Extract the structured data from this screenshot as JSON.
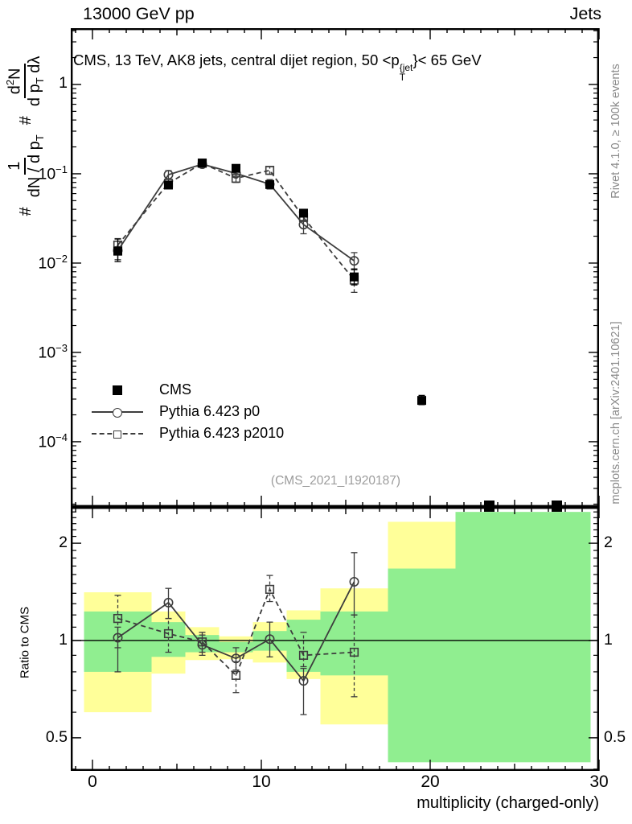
{
  "header": {
    "left": "13000 GeV pp",
    "right": "Jets"
  },
  "plot_title": {
    "part1": "CMS, 13 TeV, AK8 jets, central dijet region, 50 <p",
    "sup": "{jet",
    "sub": "T",
    "part2": "}< 65 GeV"
  },
  "formula": {
    "hash1": "#",
    "num1": "1",
    "den1": "dN / d p",
    "den1_sub": "T",
    "hash2": "#",
    "num2_d": "d",
    "num2_sup": "2",
    "num2_N": "N",
    "den2": "d p",
    "den2_sub": "T",
    "den2_tail": " dλ"
  },
  "legend": {
    "items": [
      {
        "label": "CMS",
        "marker": "filled-square"
      },
      {
        "label": "Pythia 6.423 p0",
        "marker": "circle-on-line"
      },
      {
        "label": "Pythia 6.423 p2010",
        "marker": "square-on-dashed-line"
      }
    ]
  },
  "watermark": "(CMS_2021_I1920187)",
  "side_notes": {
    "rivet": "Rivet 4.1.0, ≥ 100k events",
    "mcplots": "mcplots.cern.ch [arXiv:2401.10621]"
  },
  "ratio_ylabel": "Ratio to CMS",
  "colors": {
    "band_yellow": "#ffff99",
    "band_green": "#90ee90",
    "mc_line": "#3d3d3d",
    "data": "#000000",
    "gray_text": "#8a8a8a"
  },
  "chart_data": {
    "type": "scatter",
    "xlabel": "multiplicity (charged-only)",
    "xlim": [
      -1.286,
      30
    ],
    "x": {
      "ticks_major": [
        {
          "v": 0,
          "label": "0"
        },
        {
          "v": 10,
          "label": "10"
        },
        {
          "v": 20,
          "label": "20"
        },
        {
          "v": 30,
          "label": "30"
        }
      ],
      "ticks_medium": [
        5,
        15,
        25
      ]
    },
    "main": {
      "yscale": "log",
      "ylim": [
        1.86e-05,
        4.27
      ],
      "yticks": [
        {
          "v": 1,
          "base": "1",
          "exp": ""
        },
        {
          "v": 0.1,
          "base": "10",
          "exp": "−1"
        },
        {
          "v": 0.01,
          "base": "10",
          "exp": "−2"
        },
        {
          "v": 0.001,
          "base": "10",
          "exp": "−3"
        },
        {
          "v": 0.0001,
          "base": "10",
          "exp": "−4"
        }
      ],
      "series": [
        {
          "name": "Pythia 6.423 p2010",
          "marker": "open-square",
          "line": "dashed",
          "color": "#3d3d3d",
          "x": [
            1.5,
            4.5,
            6.5,
            8.5,
            10.5,
            12.5,
            15.5
          ],
          "y": [
            0.0159,
            0.0783,
            0.131,
            0.089,
            0.1093,
            0.0324,
            0.00646
          ],
          "err_lo": [
            0.0129,
            0.0686,
            0.12,
            0.08,
            0.0985,
            0.0301,
            0.0047
          ],
          "err_hi": [
            0.0188,
            0.0872,
            0.136,
            0.099,
            0.12,
            0.0383,
            0.0084
          ]
        },
        {
          "name": "Pythia 6.423 p0",
          "marker": "open-circle",
          "line": "solid",
          "color": "#3d3d3d",
          "x": [
            1.5,
            4.5,
            6.5,
            8.5,
            10.5,
            12.5,
            15.5
          ],
          "y": [
            0.0138,
            0.0977,
            0.128,
            0.101,
            0.0764,
            0.027,
            0.0106
          ],
          "err_lo": [
            0.0109,
            0.0875,
            0.119,
            0.0937,
            0.0675,
            0.0213,
            0.0084
          ],
          "err_hi": [
            0.0152,
            0.1085,
            0.137,
            0.109,
            0.0861,
            0.0297,
            0.0131
          ]
        },
        {
          "name": "CMS",
          "marker": "filled-square",
          "line": "none",
          "color": "#000000",
          "x": [
            1.5,
            4.5,
            6.5,
            8.5,
            10.5,
            12.5,
            15.5,
            19.5
          ],
          "y": [
            0.0136,
            0.0748,
            0.132,
            0.115,
            0.0758,
            0.0362,
            0.007,
            0.00029
          ],
          "err_lo": [
            0.0104,
            0.07,
            0.124,
            0.107,
            0.0705,
            0.033,
            0.0057,
            0.00026
          ],
          "err_hi": [
            0.0186,
            0.08,
            0.14,
            0.123,
            0.0815,
            0.0398,
            0.0086,
            0.00033
          ],
          "clipped_below_axis_x": [
            23.5,
            27.5
          ]
        }
      ]
    },
    "ratio": {
      "yscale": "log",
      "ylim": [
        0.395,
        2.59
      ],
      "yticks": [
        {
          "v": 2,
          "label": "2"
        },
        {
          "v": 1,
          "label": "1"
        },
        {
          "v": 0.5,
          "label": "0.5"
        }
      ],
      "reference_line": 1,
      "bands": [
        {
          "x": [
            -0.5,
            3.5
          ],
          "yellow": [
            0.6,
            1.41
          ],
          "green": [
            0.8,
            1.23
          ]
        },
        {
          "x": [
            3.5,
            5.5
          ],
          "yellow": [
            0.79,
            1.23
          ],
          "green": [
            0.89,
            1.14
          ]
        },
        {
          "x": [
            5.5,
            7.5
          ],
          "yellow": [
            0.87,
            1.1
          ],
          "green": [
            0.92,
            1.04
          ]
        },
        {
          "x": [
            7.5,
            9.5
          ],
          "yellow": [
            0.875,
            1.03
          ],
          "green": [
            0.92,
            0.99
          ]
        },
        {
          "x": [
            9.5,
            11.5
          ],
          "yellow": [
            0.855,
            1.14
          ],
          "green": [
            0.93,
            1.07
          ]
        },
        {
          "x": [
            11.5,
            13.5
          ],
          "yellow": [
            0.76,
            1.24
          ],
          "green": [
            0.8,
            1.16
          ]
        },
        {
          "x": [
            13.5,
            17.5
          ],
          "yellow": [
            0.55,
            1.45
          ],
          "green": [
            0.78,
            1.23
          ]
        },
        {
          "x": [
            17.5,
            21.5
          ],
          "yellow": [
            1.67,
            2.33
          ],
          "green": [
            0.42,
            1.67
          ]
        },
        {
          "x": [
            21.5,
            29.5
          ],
          "yellow": null,
          "green": [
            0.42,
            2.5
          ]
        }
      ],
      "series": [
        {
          "name": "Pythia 6.423 p2010",
          "marker": "open-square",
          "line": "dashed",
          "color": "#3d3d3d",
          "x": [
            1.5,
            4.5,
            6.5,
            8.5,
            10.5,
            12.5,
            15.5
          ],
          "y": [
            1.17,
            1.05,
            0.99,
            0.78,
            1.44,
            0.9,
            0.92
          ],
          "err_lo": [
            0.95,
            0.92,
            0.92,
            0.69,
            1.32,
            0.83,
            0.67
          ],
          "err_hi": [
            1.38,
            1.17,
            1.06,
            0.86,
            1.59,
            1.06,
            1.2
          ]
        },
        {
          "name": "Pythia 6.423 p0",
          "marker": "open-circle",
          "line": "solid",
          "color": "#3d3d3d",
          "x": [
            1.5,
            4.5,
            6.5,
            8.5,
            10.5,
            12.5,
            15.5
          ],
          "y": [
            1.02,
            1.31,
            0.97,
            0.88,
            1.01,
            0.75,
            1.52
          ],
          "err_lo": [
            0.8,
            1.17,
            0.9,
            0.81,
            0.89,
            0.59,
            1.2
          ],
          "err_hi": [
            1.1,
            1.45,
            1.04,
            0.95,
            1.14,
            0.82,
            1.87
          ]
        }
      ]
    }
  }
}
